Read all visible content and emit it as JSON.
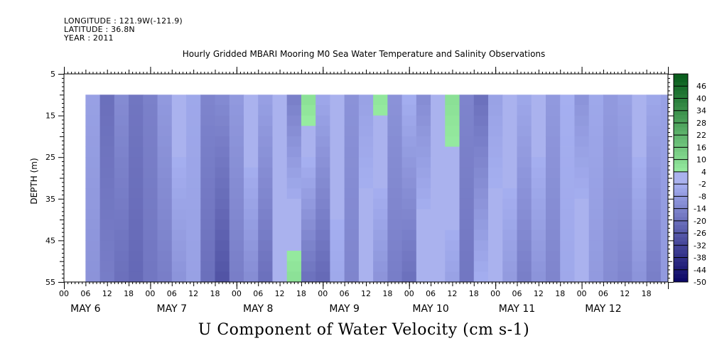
{
  "header": {
    "longitude": "LONGITUDE : 121.9W(-121.9)",
    "latitude": "LATITUDE : 36.8N",
    "year": "YEAR : 2011"
  },
  "chart_data": {
    "type": "heatmap",
    "title": "Hourly Gridded MBARI Mooring M0 Sea Water Temperature and Salinity Observations",
    "xlabel": "U Component of Water Velocity (cm s-1)",
    "ylabel": "DEPTH (m)",
    "ylim": [
      55,
      5
    ],
    "y_ticks": [
      5,
      15,
      25,
      35,
      45,
      55
    ],
    "x_hour_ticks": [
      "00",
      "06",
      "12",
      "18",
      "00",
      "06",
      "12",
      "18",
      "00",
      "06",
      "12",
      "18",
      "00",
      "06",
      "12",
      "18",
      "00",
      "06",
      "12",
      "18",
      "00",
      "06",
      "12",
      "18",
      "00",
      "06",
      "12",
      "18"
    ],
    "x_day_labels": [
      "MAY  6",
      "MAY  7",
      "MAY  8",
      "MAY  9",
      "MAY 10",
      "MAY 11",
      "MAY 12"
    ],
    "data_depth_range": [
      10,
      55
    ],
    "data_time_range_hours": [
      6,
      167
    ],
    "colorbar": {
      "labels": [
        "46",
        "40",
        "34",
        "28",
        "22",
        "16",
        "10",
        "4",
        "-2",
        "-8",
        "-14",
        "-20",
        "-26",
        "-32",
        "-38",
        "-44",
        "-50"
      ],
      "range": [
        -50,
        52
      ],
      "step": 6
    },
    "column_profiles_cm_s": {
      "hours": [
        6,
        10,
        14,
        18,
        22,
        26,
        30,
        34,
        38,
        42,
        46,
        50,
        54,
        58,
        62,
        66,
        70,
        74,
        78,
        82,
        86,
        90,
        94,
        98,
        102,
        106,
        110,
        114,
        118,
        122,
        126,
        130,
        134,
        138,
        142,
        146,
        150,
        154,
        158,
        162,
        166
      ],
      "surface": [
        -6,
        -20,
        -12,
        -18,
        -15,
        -8,
        2,
        -4,
        -14,
        -12,
        -8,
        4,
        -6,
        -2,
        -16,
        8,
        -4,
        2,
        -10,
        -6,
        6,
        -10,
        -2,
        -12,
        4,
        8,
        -14,
        -20,
        -6,
        4,
        -4,
        2,
        -8,
        -2,
        -10,
        -4,
        -8,
        -6,
        2,
        -4,
        -6
      ],
      "bottom": [
        -10,
        -16,
        -20,
        -22,
        -18,
        -16,
        -10,
        -6,
        -20,
        -28,
        -16,
        -12,
        -20,
        0,
        8,
        -20,
        -22,
        -4,
        -14,
        2,
        -10,
        -16,
        -20,
        4,
        2,
        -6,
        -18,
        -2,
        2,
        -8,
        -16,
        -10,
        -14,
        -4,
        4,
        -8,
        -12,
        -14,
        -10,
        -16,
        -8
      ]
    }
  }
}
